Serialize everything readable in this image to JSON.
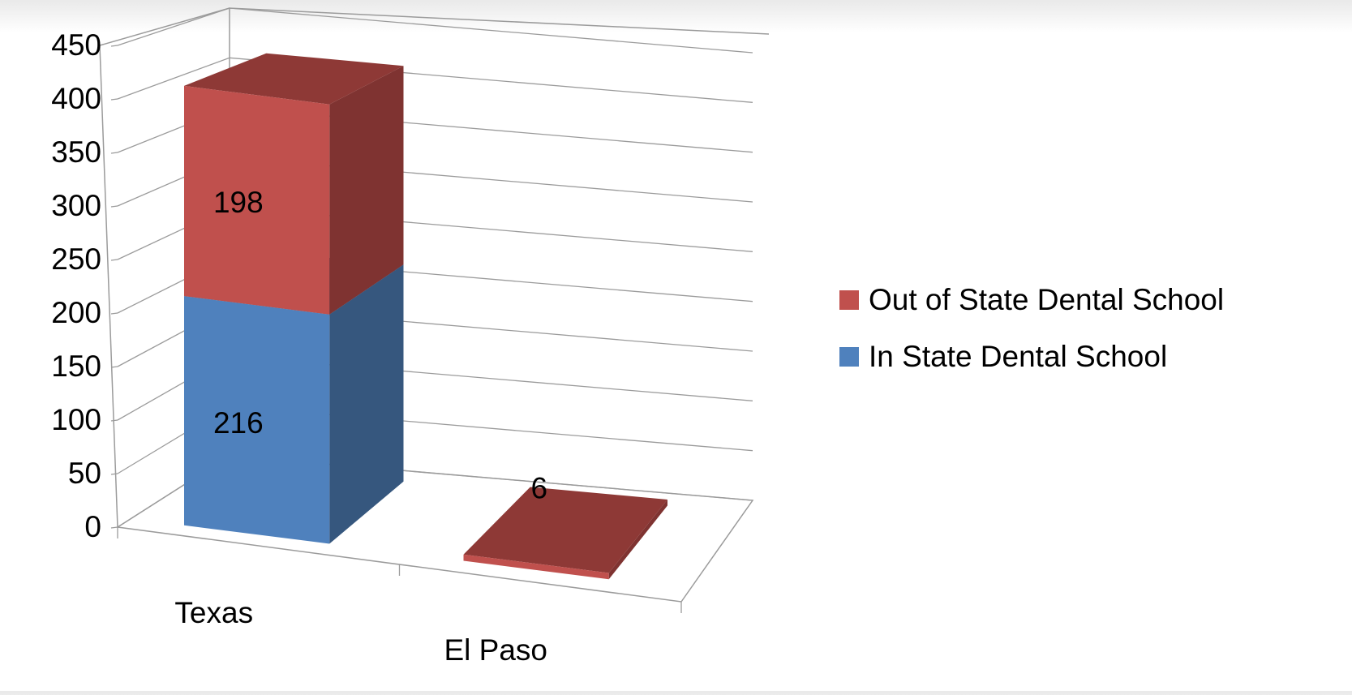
{
  "chart_data": {
    "type": "bar",
    "stacked": true,
    "three_d": true,
    "categories": [
      "Texas",
      "El Paso"
    ],
    "series": [
      {
        "name": "In State Dental School",
        "values": [
          216,
          0
        ],
        "color": "#4f81bd",
        "side_color": "#36577e",
        "top_color": "#3f6796"
      },
      {
        "name": "Out of State Dental School",
        "values": [
          198,
          6
        ],
        "color": "#c0504d",
        "side_color": "#7f3331",
        "top_color": "#8e3936"
      }
    ],
    "data_labels": [
      {
        "series": "In State Dental School",
        "category": "Texas",
        "text": "216"
      },
      {
        "series": "Out of State Dental School",
        "category": "Texas",
        "text": "198"
      },
      {
        "series": "Out of State Dental School",
        "category": "El Paso",
        "text": "6"
      }
    ],
    "y_ticks": [
      "0",
      "50",
      "100",
      "150",
      "200",
      "250",
      "300",
      "350",
      "400",
      "450"
    ],
    "ylim": [
      0,
      450
    ],
    "grid": true,
    "legend_position": "right",
    "legend": [
      "Out of State Dental School",
      "In State Dental School"
    ]
  }
}
